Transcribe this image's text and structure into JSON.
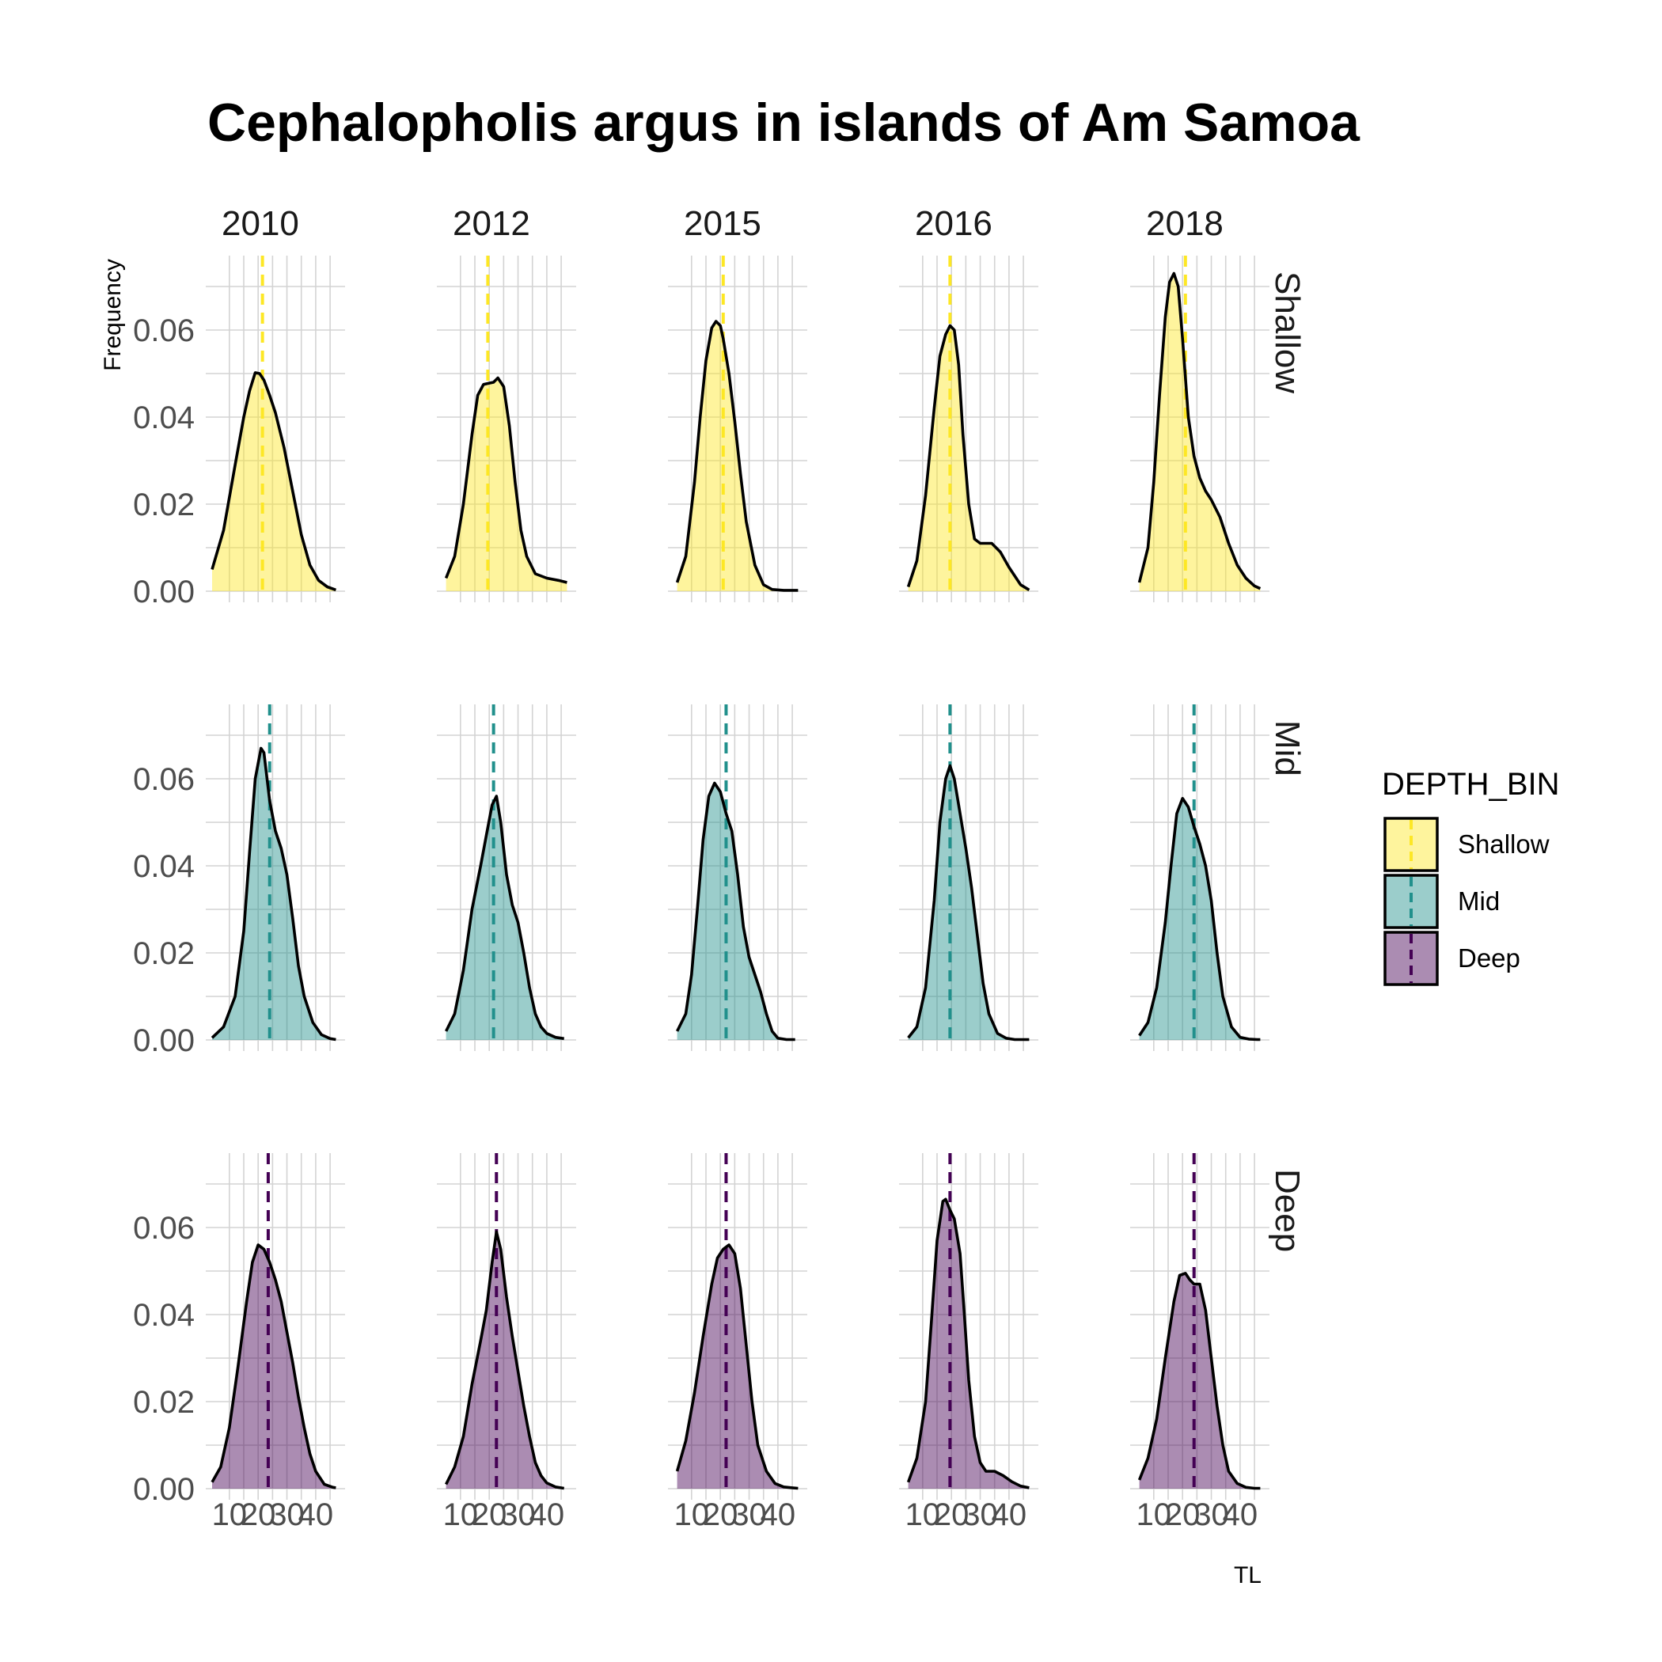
{
  "chart_data": {
    "type": "area",
    "title": "Cephalopholis argus in islands of Am Samoa",
    "xlabel": "TL",
    "ylabel": "Frequency",
    "columns": [
      "2010",
      "2012",
      "2015",
      "2016",
      "2018"
    ],
    "rows": [
      "Shallow",
      "Mid",
      "Deep"
    ],
    "x_ticks": [
      "10",
      "20",
      "30",
      "40"
    ],
    "xlim": [
      4,
      48
    ],
    "y_ticks": [
      "0.00",
      "0.02",
      "0.04",
      "0.06"
    ],
    "ylim": [
      0,
      0.0755
    ],
    "grid": true,
    "legend": {
      "title": "DEPTH_BIN",
      "position": "right",
      "items": [
        {
          "label": "Shallow",
          "fill": "#FDE725",
          "line": "#FDE725"
        },
        {
          "label": "Mid",
          "fill": "#21908C",
          "line": "#21908C"
        },
        {
          "label": "Deep",
          "fill": "#440154",
          "line": "#440154"
        }
      ]
    },
    "panels": [
      {
        "row": "Shallow",
        "col": "2010",
        "mean": 21.5,
        "x": [
          4,
          8,
          12,
          15,
          17,
          19,
          20.5,
          22,
          24,
          26,
          29,
          32,
          35,
          38,
          41,
          44,
          47
        ],
        "y": [
          0.005,
          0.014,
          0.029,
          0.04,
          0.046,
          0.0502,
          0.05,
          0.0485,
          0.045,
          0.041,
          0.033,
          0.023,
          0.013,
          0.006,
          0.0025,
          0.001,
          0.0003
        ]
      },
      {
        "row": "Shallow",
        "col": "2012",
        "mean": 19.5,
        "x": [
          5,
          8,
          11,
          14,
          16,
          18,
          20,
          21.5,
          23,
          25,
          27,
          29,
          31,
          33,
          36,
          40,
          44,
          47
        ],
        "y": [
          0.003,
          0.008,
          0.02,
          0.036,
          0.045,
          0.0475,
          0.0478,
          0.048,
          0.049,
          0.047,
          0.038,
          0.025,
          0.014,
          0.008,
          0.004,
          0.003,
          0.0025,
          0.002
        ]
      },
      {
        "row": "Shallow",
        "col": "2015",
        "mean": 21,
        "x": [
          5,
          8,
          11,
          13,
          15,
          17,
          18.5,
          20,
          21,
          23,
          25,
          27,
          29,
          32,
          35,
          38,
          42,
          47
        ],
        "y": [
          0.002,
          0.008,
          0.025,
          0.04,
          0.053,
          0.0605,
          0.062,
          0.061,
          0.058,
          0.05,
          0.039,
          0.027,
          0.016,
          0.006,
          0.0015,
          0.0004,
          0.0002,
          0.0002
        ]
      },
      {
        "row": "Shallow",
        "col": "2016",
        "mean": 19.5,
        "x": [
          5,
          8,
          11,
          14,
          16,
          18,
          19.5,
          21,
          22.5,
          24,
          26,
          28,
          30,
          32,
          34,
          37,
          40,
          44,
          47
        ],
        "y": [
          0.001,
          0.007,
          0.022,
          0.042,
          0.054,
          0.059,
          0.061,
          0.06,
          0.052,
          0.036,
          0.02,
          0.012,
          0.011,
          0.011,
          0.011,
          0.009,
          0.0055,
          0.0015,
          0.0003
        ]
      },
      {
        "row": "Shallow",
        "col": "2018",
        "mean": 21,
        "x": [
          5,
          8,
          10,
          12,
          14,
          15.5,
          17,
          18.5,
          20,
          22,
          24,
          26,
          28,
          30,
          33,
          36,
          39,
          42,
          45,
          47
        ],
        "y": [
          0.002,
          0.01,
          0.025,
          0.045,
          0.063,
          0.071,
          0.073,
          0.07,
          0.058,
          0.04,
          0.031,
          0.026,
          0.023,
          0.021,
          0.017,
          0.011,
          0.006,
          0.003,
          0.0012,
          0.0006
        ]
      },
      {
        "row": "Mid",
        "col": "2010",
        "mean": 24,
        "x": [
          4,
          8,
          12,
          15,
          17,
          19,
          21,
          22,
          24,
          26,
          28,
          30,
          32,
          34,
          36,
          39,
          42,
          45,
          47
        ],
        "y": [
          0.0005,
          0.003,
          0.01,
          0.025,
          0.043,
          0.06,
          0.067,
          0.066,
          0.055,
          0.048,
          0.044,
          0.038,
          0.028,
          0.017,
          0.01,
          0.004,
          0.0012,
          0.0003,
          0.0001
        ]
      },
      {
        "row": "Mid",
        "col": "2012",
        "mean": 21.5,
        "x": [
          5,
          8,
          11,
          14,
          17,
          19,
          21,
          22.5,
          24,
          26,
          28,
          30,
          32,
          34,
          36,
          38,
          40,
          43,
          46
        ],
        "y": [
          0.002,
          0.006,
          0.016,
          0.03,
          0.04,
          0.047,
          0.054,
          0.056,
          0.05,
          0.038,
          0.031,
          0.027,
          0.02,
          0.012,
          0.006,
          0.003,
          0.0015,
          0.0006,
          0.0003
        ]
      },
      {
        "row": "Mid",
        "col": "2015",
        "mean": 22,
        "x": [
          5,
          8,
          10,
          12,
          14,
          16,
          18,
          20,
          22,
          24,
          26,
          28,
          30,
          32,
          34,
          36,
          38,
          40,
          43,
          46
        ],
        "y": [
          0.002,
          0.006,
          0.015,
          0.03,
          0.046,
          0.056,
          0.059,
          0.057,
          0.052,
          0.048,
          0.038,
          0.026,
          0.019,
          0.015,
          0.011,
          0.006,
          0.002,
          0.0004,
          0.0001,
          0.0001
        ]
      },
      {
        "row": "Mid",
        "col": "2016",
        "mean": 19.5,
        "x": [
          5,
          8,
          11,
          14,
          16,
          18,
          19.5,
          21,
          23,
          25,
          27,
          29,
          31,
          33,
          36,
          39,
          42,
          45,
          47
        ],
        "y": [
          0.0005,
          0.003,
          0.012,
          0.032,
          0.05,
          0.06,
          0.063,
          0.06,
          0.052,
          0.044,
          0.035,
          0.024,
          0.013,
          0.006,
          0.0015,
          0.0004,
          0.0001,
          0.0001,
          0.0001
        ]
      },
      {
        "row": "Mid",
        "col": "2018",
        "mean": 24,
        "x": [
          5,
          8,
          11,
          14,
          16,
          18,
          20,
          22,
          24,
          26,
          28,
          30,
          32,
          34,
          37,
          40,
          43,
          46,
          47
        ],
        "y": [
          0.001,
          0.004,
          0.012,
          0.027,
          0.04,
          0.052,
          0.0555,
          0.0535,
          0.049,
          0.045,
          0.04,
          0.032,
          0.02,
          0.01,
          0.003,
          0.0006,
          0.0002,
          0.0001,
          0.0001
        ]
      },
      {
        "row": "Deep",
        "col": "2010",
        "mean": 23.5,
        "x": [
          4,
          7,
          10,
          13,
          16,
          18,
          20,
          22,
          24,
          26,
          28,
          30,
          32,
          34,
          36,
          38,
          40,
          43,
          46,
          47
        ],
        "y": [
          0.0015,
          0.005,
          0.014,
          0.028,
          0.043,
          0.052,
          0.056,
          0.055,
          0.052,
          0.048,
          0.043,
          0.036,
          0.029,
          0.021,
          0.014,
          0.008,
          0.004,
          0.001,
          0.0003,
          0.0002
        ]
      },
      {
        "row": "Deep",
        "col": "2012",
        "mean": 22.5,
        "x": [
          5,
          8,
          11,
          14,
          17,
          19,
          21,
          22.5,
          24,
          26,
          28,
          30,
          32,
          34,
          36,
          38,
          40,
          43,
          46
        ],
        "y": [
          0.001,
          0.005,
          0.012,
          0.024,
          0.034,
          0.041,
          0.052,
          0.059,
          0.055,
          0.044,
          0.035,
          0.027,
          0.019,
          0.012,
          0.006,
          0.003,
          0.0013,
          0.0004,
          0.0001
        ]
      },
      {
        "row": "Deep",
        "col": "2015",
        "mean": 22,
        "x": [
          5,
          8,
          11,
          14,
          17,
          19,
          21,
          23,
          25,
          27,
          29,
          31,
          33,
          36,
          39,
          42,
          45,
          47
        ],
        "y": [
          0.004,
          0.011,
          0.022,
          0.035,
          0.047,
          0.053,
          0.055,
          0.056,
          0.054,
          0.046,
          0.033,
          0.02,
          0.01,
          0.004,
          0.0012,
          0.0004,
          0.0002,
          0.0001
        ]
      },
      {
        "row": "Deep",
        "col": "2016",
        "mean": 19.5,
        "x": [
          5,
          8,
          11,
          13,
          15,
          17,
          18,
          19.5,
          21,
          23,
          24.5,
          26,
          28,
          30,
          32,
          35,
          38,
          41,
          44,
          47
        ],
        "y": [
          0.0015,
          0.007,
          0.02,
          0.038,
          0.057,
          0.066,
          0.0665,
          0.064,
          0.062,
          0.054,
          0.04,
          0.025,
          0.012,
          0.006,
          0.004,
          0.004,
          0.003,
          0.0016,
          0.0006,
          0.0002
        ]
      },
      {
        "row": "Deep",
        "col": "2018",
        "mean": 24,
        "x": [
          5,
          8,
          11,
          14,
          17,
          19,
          21,
          22.5,
          24,
          26,
          28,
          30,
          32,
          34,
          36,
          39,
          42,
          45,
          47
        ],
        "y": [
          0.002,
          0.007,
          0.016,
          0.03,
          0.043,
          0.049,
          0.0495,
          0.048,
          0.047,
          0.047,
          0.041,
          0.03,
          0.019,
          0.01,
          0.004,
          0.0012,
          0.0003,
          0.0001,
          0.0001
        ]
      }
    ]
  }
}
